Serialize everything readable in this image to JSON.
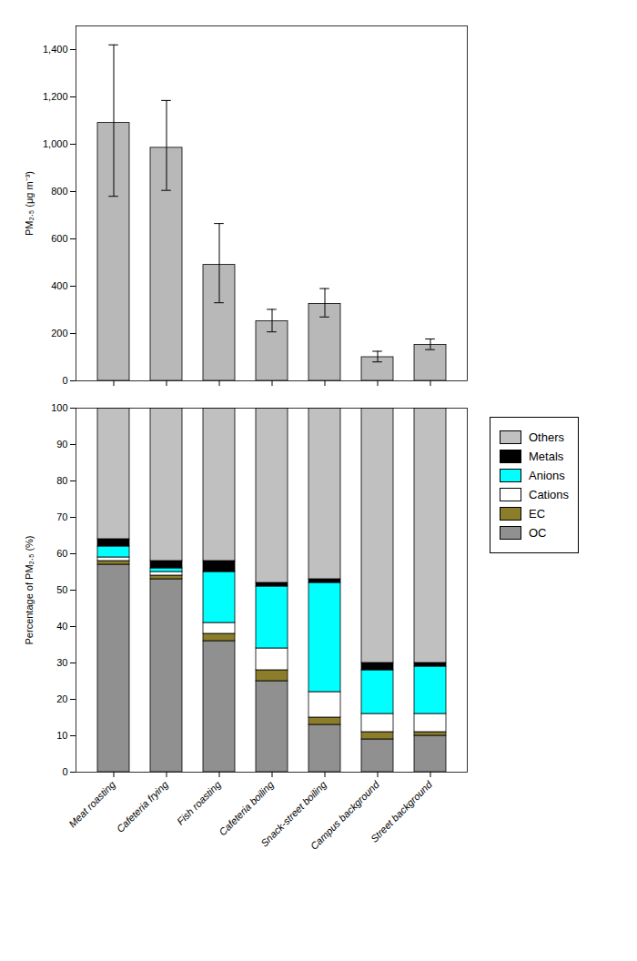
{
  "chart_data": [
    {
      "type": "bar",
      "categories": [
        "Meat roasting",
        "Cafeteria frying",
        "Fish roasting",
        "Cafeteria boiling",
        "Snack-street boiling",
        "Campus background",
        "Street background"
      ],
      "values": [
        1090,
        985,
        490,
        252,
        325,
        100,
        152
      ],
      "error_upper": [
        330,
        200,
        175,
        50,
        65,
        25,
        25
      ],
      "error_lower": [
        310,
        180,
        160,
        45,
        55,
        20,
        20
      ],
      "color": "#b8b8b8",
      "ylabel": "PM₂.₅ (μg m⁻³)",
      "ylim": [
        0,
        1500
      ],
      "yticks": [
        0,
        200,
        400,
        600,
        800,
        1000,
        1200,
        1400
      ],
      "tick_labels": "y"
    },
    {
      "type": "bar",
      "stacked": true,
      "categories": [
        "Meat roasting",
        "Cafeteria frying",
        "Fish roasting",
        "Cafeteria boiling",
        "Snack-street boiling",
        "Campus background",
        "Street background"
      ],
      "series": [
        {
          "name": "OC",
          "color": "#909090",
          "values": [
            57,
            53,
            36,
            25,
            13,
            9,
            10
          ]
        },
        {
          "name": "EC",
          "color": "#8B7D2A",
          "values": [
            1,
            1,
            2,
            3,
            2,
            2,
            1
          ]
        },
        {
          "name": "Cations",
          "color": "#ffffff",
          "values": [
            1,
            1,
            3,
            6,
            7,
            5,
            5
          ]
        },
        {
          "name": "Anions",
          "color": "#00ffff",
          "values": [
            3,
            1,
            14,
            17,
            30,
            12,
            13
          ]
        },
        {
          "name": "Metals",
          "color": "#000000",
          "values": [
            2,
            2,
            3,
            1,
            1,
            2,
            1
          ]
        },
        {
          "name": "Others",
          "color": "#c0c0c0",
          "values": [
            36,
            42,
            42,
            48,
            47,
            70,
            70
          ]
        }
      ],
      "ylabel": "Percentage of PM₂.₅ (%)",
      "ylim": [
        0,
        100
      ],
      "yticks": [
        0,
        10,
        20,
        30,
        40,
        50,
        60,
        70,
        80,
        90,
        100
      ],
      "legend": "right"
    }
  ]
}
